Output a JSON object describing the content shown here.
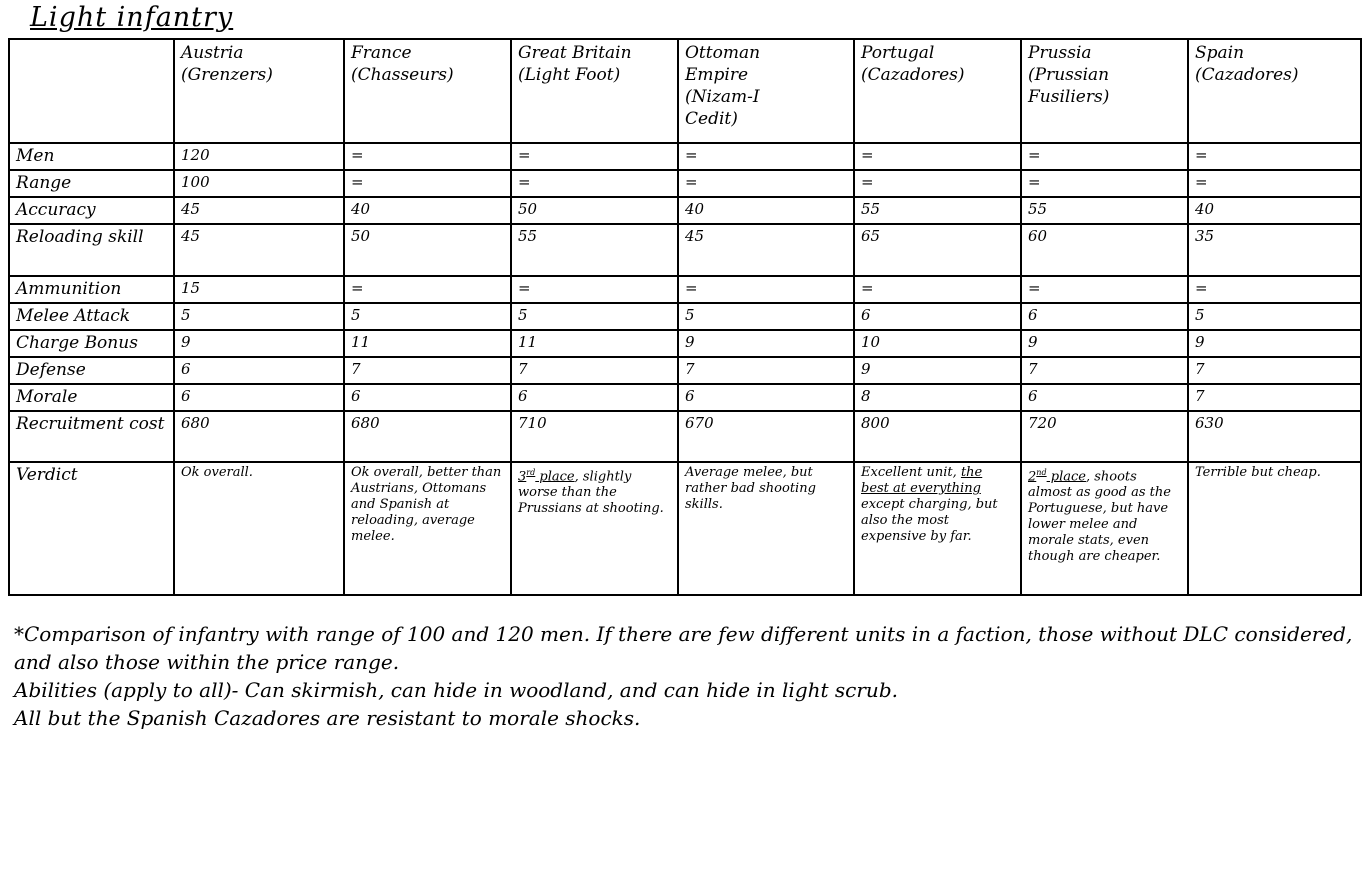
{
  "title": "Light infantry",
  "table": {
    "corner_label": "",
    "columns": [
      "Austria\n(Grenzers)",
      "France\n(Chasseurs)",
      "Great Britain\n(Light Foot)",
      "Ottoman\nEmpire\n(Nizam-I\nCedit)",
      "Portugal\n(Cazadores)",
      "Prussia\n(Prussian\nFusiliers)",
      "Spain\n(Cazadores)"
    ],
    "rows": [
      {
        "label": "Men",
        "values": [
          "120",
          "=",
          "=",
          "=",
          "=",
          "=",
          "="
        ]
      },
      {
        "label": "Range",
        "values": [
          "100",
          "=",
          "=",
          "=",
          "=",
          "=",
          "="
        ]
      },
      {
        "label": "Accuracy",
        "values": [
          "45",
          "40",
          "50",
          "40",
          "55",
          "55",
          "40"
        ]
      },
      {
        "label": "Reloading skill",
        "values": [
          "45",
          "50",
          "55",
          "45",
          "65",
          "60",
          "35"
        ]
      },
      {
        "label": "Ammunition",
        "values": [
          "15",
          "=",
          "=",
          "=",
          "=",
          "=",
          "="
        ]
      },
      {
        "label": "Melee Attack",
        "values": [
          "5",
          "5",
          "5",
          "5",
          "6",
          "6",
          "5"
        ]
      },
      {
        "label": "Charge Bonus",
        "values": [
          "9",
          "11",
          "11",
          "9",
          "10",
          "9",
          "9"
        ]
      },
      {
        "label": "Defense",
        "values": [
          "6",
          "7",
          "7",
          "7",
          "9",
          "7",
          "7"
        ]
      },
      {
        "label": "Morale",
        "values": [
          "6",
          "6",
          "6",
          "6",
          "8",
          "6",
          "7"
        ]
      },
      {
        "label": "Recruitment cost",
        "values": [
          "680",
          "680",
          "710",
          "670",
          "800",
          "720",
          "630"
        ]
      }
    ],
    "verdict_row": {
      "label": "Verdict",
      "cells": [
        {
          "segments": [
            {
              "text": "Ok overall."
            }
          ]
        },
        {
          "segments": [
            {
              "text": "Ok overall, better than Austrians, Ottomans and Spanish at reloading, average melee."
            }
          ]
        },
        {
          "segments": [
            {
              "text": "3",
              "underline": true
            },
            {
              "text": "rd",
              "underline": true,
              "superscript": true
            },
            {
              "text": " place",
              "underline": true
            },
            {
              "text": ", slightly worse than the Prussians at shooting."
            }
          ]
        },
        {
          "segments": [
            {
              "text": "Average melee, but rather bad shooting skills."
            }
          ]
        },
        {
          "segments": [
            {
              "text": "Excellent unit, "
            },
            {
              "text": "the best at everything",
              "underline": true
            },
            {
              "text": " except charging, but also the most expensive by far."
            }
          ]
        },
        {
          "segments": [
            {
              "text": "2",
              "underline": true
            },
            {
              "text": "nd",
              "underline": true,
              "superscript": true
            },
            {
              "text": " place",
              "underline": true
            },
            {
              "text": ", shoots almost as good as the Portuguese, but have lower melee and morale stats, even though are cheaper."
            }
          ]
        },
        {
          "segments": [
            {
              "text": "Terrible but cheap."
            }
          ]
        }
      ]
    }
  },
  "footnotes": [
    "*Comparison of infantry with range of 100 and 120 men. If there are few different units in a faction, those without DLC considered, and also those within the price range.",
    "Abilities (apply to all)- Can skirmish, can hide in woodland, and can hide in light scrub.",
    "All but the Spanish Cazadores are resistant to morale shocks."
  ]
}
